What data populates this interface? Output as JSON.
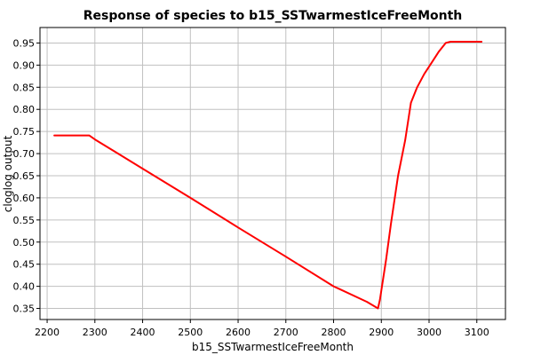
{
  "chart_data": {
    "type": "line",
    "title": "Response of species to b15_SSTwarmestIceFreeMonth",
    "xlabel": "b15_SSTwarmestIceFreeMonth",
    "ylabel": "cloglog output",
    "xlim": [
      2185,
      3160
    ],
    "ylim": [
      0.325,
      0.985
    ],
    "xticks": [
      2200,
      2300,
      2400,
      2500,
      2600,
      2700,
      2800,
      2900,
      3000,
      3100
    ],
    "yticks": [
      0.35,
      0.4,
      0.45,
      0.5,
      0.55,
      0.6,
      0.65,
      0.7,
      0.75,
      0.8,
      0.85,
      0.9,
      0.95
    ],
    "grid": true,
    "legend": "none",
    "series": [
      {
        "color": "#ff0000",
        "x": [
          2215,
          2288,
          2300,
          2400,
          2500,
          2600,
          2700,
          2800,
          2870,
          2893,
          2897,
          2910,
          2920,
          2935,
          2950,
          2962,
          2975,
          2990,
          3005,
          3020,
          3035,
          3045,
          3060,
          3080,
          3110
        ],
        "y": [
          0.741,
          0.741,
          0.732,
          0.666,
          0.6,
          0.533,
          0.467,
          0.4,
          0.365,
          0.35,
          0.37,
          0.46,
          0.54,
          0.65,
          0.73,
          0.815,
          0.85,
          0.88,
          0.905,
          0.93,
          0.95,
          0.953,
          0.953,
          0.953,
          0.953
        ]
      }
    ]
  }
}
